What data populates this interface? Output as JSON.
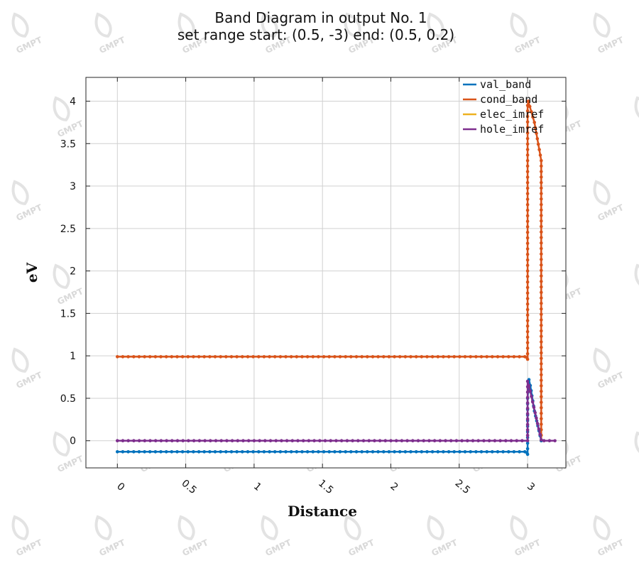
{
  "watermark": "GMPT",
  "chart_data": {
    "type": "line",
    "title": "Band Diagram in output No. 1",
    "subtitle": "set range start: (0.5, -3) end: (0.5, 0.2)",
    "xlabel": "Distance",
    "ylabel": "eV",
    "xlim": [
      -0.23,
      3.28
    ],
    "ylim": [
      -0.32,
      4.28
    ],
    "xticks": [
      "0",
      "0.5",
      "1",
      "1.5",
      "2",
      "2.5",
      "3"
    ],
    "yticks": [
      "0",
      "0.5",
      "1",
      "1.5",
      "2",
      "2.5",
      "3",
      "3.5",
      "4"
    ],
    "grid": true,
    "legend_position": "top-right",
    "series": [
      {
        "name": "val_band",
        "color": "#0072BD",
        "markers": true,
        "x": [
          0,
          2.98,
          2.995,
          3.0,
          3.0,
          3.01,
          3.02,
          3.05,
          3.1
        ],
        "y": [
          -0.13,
          -0.13,
          -0.14,
          -0.16,
          0.5,
          0.72,
          0.65,
          0.35,
          0.0
        ]
      },
      {
        "name": "cond_band",
        "color": "#D95319",
        "markers": true,
        "x": [
          0,
          2.98,
          2.995,
          3.0,
          3.0,
          3.005,
          3.05,
          3.1,
          3.1
        ],
        "y": [
          0.99,
          0.99,
          0.98,
          0.96,
          3.95,
          4.0,
          3.75,
          3.3,
          0.0
        ]
      },
      {
        "name": "elec_imref",
        "color": "#EDB120",
        "markers": false,
        "x": [
          0,
          3.0,
          3.0
        ],
        "y": [
          0,
          0,
          0
        ]
      },
      {
        "name": "hole_imref",
        "color": "#7E2F8E",
        "markers": true,
        "x": [
          0,
          3.0,
          3.0,
          3.01,
          3.1,
          3.12,
          3.2
        ],
        "y": [
          0,
          0,
          0.7,
          0.65,
          0.01,
          0,
          0
        ]
      }
    ]
  }
}
